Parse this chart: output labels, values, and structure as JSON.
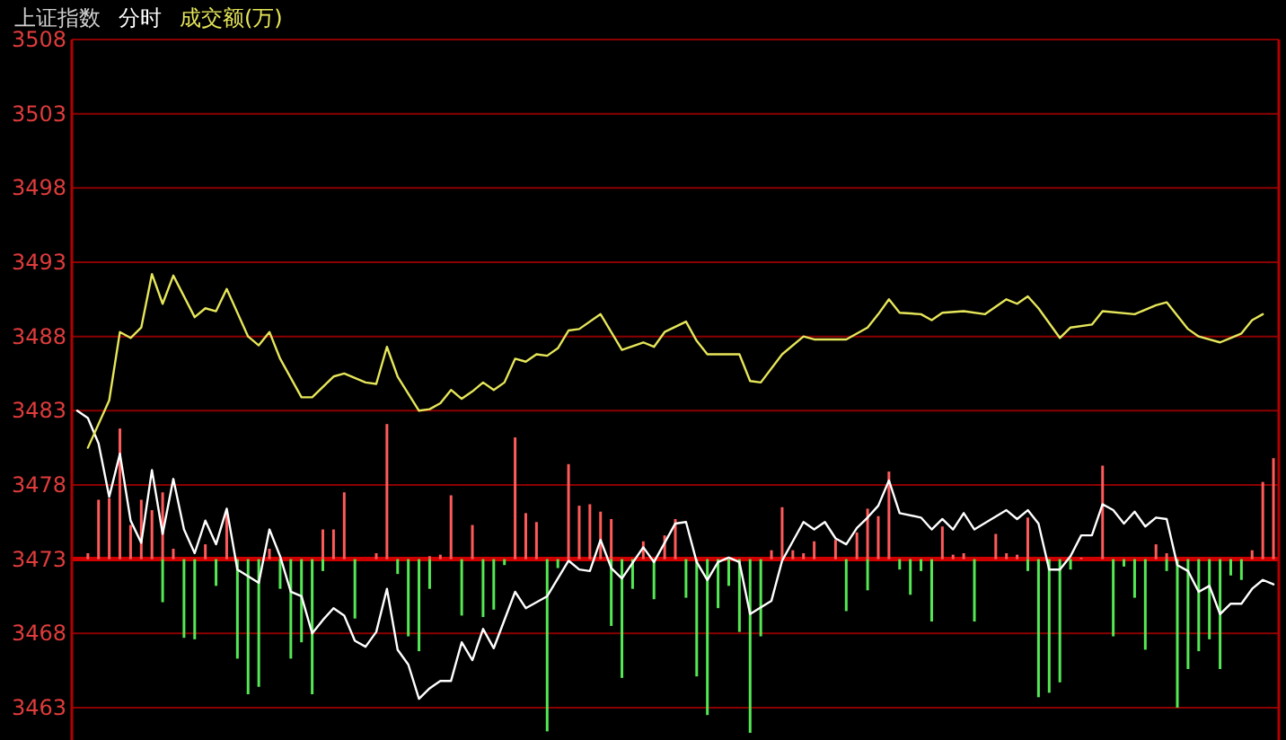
{
  "chart_data": {
    "type": "line",
    "title": "上证指数",
    "subtitle": "分时",
    "legend": "top left",
    "grid": "y",
    "ylim": [
      3461,
      3508
    ],
    "yticks": [
      3463,
      3468,
      3473,
      3478,
      3483,
      3488,
      3493,
      3498,
      3503,
      3508
    ],
    "ref_lines": [
      {
        "axis": "y",
        "value": 3473,
        "color": "#d00000"
      }
    ],
    "categories": [
      null,
      null,
      null,
      null,
      null,
      null,
      null,
      null,
      null,
      null,
      null,
      null,
      null,
      null,
      null,
      null,
      null,
      null,
      null,
      null,
      null,
      null,
      null,
      null,
      null,
      null,
      null,
      null,
      null,
      null,
      null,
      null,
      null,
      null,
      null,
      null,
      null,
      null,
      null,
      null,
      null,
      null,
      null,
      null,
      null,
      null,
      null,
      null,
      null,
      null,
      null,
      null,
      null,
      null,
      null,
      null,
      null,
      null,
      null,
      null,
      null,
      null,
      null,
      null,
      null,
      null,
      null,
      null,
      null,
      null,
      null,
      null,
      null,
      null,
      null,
      null,
      null,
      null,
      null,
      null,
      null,
      null,
      null,
      null,
      null,
      null,
      null,
      null,
      null,
      null,
      null,
      null,
      null,
      null,
      null,
      null,
      null,
      null,
      null,
      null,
      null,
      null,
      null,
      null,
      null,
      null,
      null,
      null,
      null,
      null,
      null,
      null,
      null
    ],
    "series": [
      {
        "type": "bar",
        "color": "#ff5a5a",
        "base": [
          null,
          3473,
          3473,
          3473,
          3473,
          3473,
          3473,
          3473,
          3473,
          3473,
          null,
          null,
          3473,
          null,
          3473,
          null,
          null,
          null,
          3473,
          null,
          null,
          null,
          null,
          3473,
          3473,
          3473,
          null,
          null,
          3473,
          3473,
          null,
          null,
          null,
          3473,
          3473,
          3473,
          null,
          3473,
          null,
          null,
          null,
          3473,
          3473,
          3473,
          null,
          null,
          3473,
          3473,
          3473,
          3473,
          3473,
          null,
          null,
          3473,
          null,
          3473,
          3473,
          null,
          null,
          null,
          null,
          null,
          null,
          null,
          null,
          3473,
          3473,
          3473,
          3473,
          3473,
          null,
          3473,
          null,
          3473,
          3473,
          3473,
          3473,
          null,
          null,
          null,
          null,
          3473,
          3473,
          3473,
          null,
          null,
          3473,
          3473,
          3473,
          3473,
          null,
          null,
          null,
          null,
          3473,
          null,
          3473,
          null,
          null,
          null,
          null,
          3473,
          3473,
          null,
          null,
          null,
          null,
          null,
          null,
          null,
          3473,
          3473,
          3473
        ],
        "values": [
          null,
          0.4,
          4.0,
          4.1,
          8.8,
          2.3,
          4.0,
          3.3,
          4.5,
          0.7,
          null,
          null,
          1.0,
          null,
          3.3,
          null,
          null,
          null,
          0.7,
          null,
          null,
          null,
          null,
          2.0,
          2.0,
          4.5,
          null,
          null,
          0.4,
          9.1,
          null,
          null,
          null,
          0.2,
          0.3,
          4.3,
          null,
          2.3,
          null,
          null,
          null,
          8.2,
          3.1,
          2.5,
          null,
          null,
          6.4,
          3.6,
          3.7,
          3.2,
          2.7,
          null,
          null,
          1.2,
          null,
          1.6,
          2.7,
          null,
          null,
          null,
          null,
          null,
          null,
          null,
          null,
          0.6,
          3.5,
          0.6,
          0.4,
          1.2,
          null,
          1.3,
          null,
          1.8,
          3.4,
          2.9,
          5.9,
          null,
          null,
          null,
          null,
          2.2,
          0.3,
          0.4,
          null,
          null,
          1.7,
          0.4,
          0.3,
          2.8,
          null,
          null,
          null,
          null,
          0.1,
          null,
          6.3,
          null,
          null,
          null,
          null,
          1.0,
          0.4,
          null,
          null,
          null,
          null,
          null,
          null,
          null,
          0.6,
          5.2,
          6.8
        ]
      },
      {
        "type": "bar",
        "color": "#54e854",
        "base": [
          null,
          null,
          null,
          null,
          null,
          null,
          null,
          null,
          3473,
          null,
          3473,
          3473,
          null,
          3473,
          null,
          3473,
          3473,
          3473,
          null,
          3473,
          3473,
          3473,
          3473,
          3473,
          null,
          null,
          3473,
          null,
          null,
          null,
          3473,
          3473,
          3473,
          3473,
          null,
          null,
          3473,
          null,
          3473,
          3473,
          3473,
          null,
          null,
          null,
          3473,
          3473,
          null,
          null,
          null,
          null,
          3473,
          3473,
          3473,
          null,
          3473,
          null,
          null,
          3473,
          3473,
          3473,
          3473,
          3473,
          3473,
          3473,
          3473,
          null,
          null,
          null,
          null,
          null,
          null,
          null,
          3473,
          null,
          3473,
          null,
          null,
          3473,
          3473,
          3473,
          3473,
          null,
          null,
          null,
          3473,
          null,
          null,
          null,
          null,
          3473,
          3473,
          3473,
          3473,
          3473,
          null,
          null,
          null,
          3473,
          3473,
          3473,
          3473,
          null,
          3473,
          3473,
          3473,
          3473,
          3473,
          3473,
          3473,
          3473,
          null,
          null,
          null
        ],
        "values": [
          null,
          null,
          null,
          null,
          null,
          null,
          null,
          null,
          -2.9,
          null,
          -5.3,
          -5.4,
          null,
          -1.8,
          null,
          -6.7,
          -9.1,
          -8.6,
          null,
          -2.0,
          -6.7,
          -5.6,
          -9.1,
          -0.8,
          null,
          null,
          -4.0,
          null,
          null,
          null,
          -1.0,
          -5.2,
          -6.2,
          -2.0,
          null,
          null,
          -3.8,
          null,
          -3.9,
          -3.4,
          -0.4,
          null,
          null,
          null,
          -11.6,
          -0.6,
          null,
          null,
          null,
          null,
          -4.5,
          -8.0,
          -2.0,
          null,
          -2.7,
          null,
          null,
          -2.6,
          -7.9,
          -10.5,
          -3.3,
          -1.8,
          -4.9,
          -11.7,
          -5.2,
          null,
          null,
          null,
          null,
          null,
          null,
          null,
          -3.5,
          null,
          -2.1,
          null,
          null,
          -0.7,
          -2.4,
          -0.8,
          -4.2,
          null,
          null,
          null,
          -4.2,
          null,
          null,
          null,
          null,
          -0.8,
          -9.3,
          -9.0,
          -8.3,
          -0.7,
          null,
          null,
          null,
          -5.2,
          -0.5,
          -2.6,
          -6.1,
          null,
          -0.8,
          -10.0,
          -7.4,
          -6.2,
          -5.4,
          -7.4,
          -1.1,
          -1.4,
          null,
          null,
          null
        ]
      },
      {
        "color": "#ffffff",
        "values": [
          3483.0,
          3482.5,
          3480.8,
          3477.2,
          3480.1,
          3475.6,
          3474.1,
          3479.0,
          3474.7,
          3478.4,
          3475.0,
          3473.4,
          3475.6,
          3474.0,
          3476.4,
          3472.3,
          null,
          3471.4,
          3475.0,
          3473.2,
          3470.8,
          3470.5,
          3468.0,
          3468.9,
          3469.7,
          3469.2,
          3467.5,
          3467.1,
          3468.1,
          3471.0,
          3466.9,
          3465.9,
          3463.6,
          3464.3,
          3464.8,
          3464.8,
          3467.4,
          3466.2,
          3468.3,
          3467.0,
          null,
          3470.8,
          3469.7,
          null,
          3470.5,
          null,
          3472.9,
          3472.3,
          3472.2,
          3474.3,
          3472.4,
          3471.7,
          null,
          3473.8,
          3472.8,
          null,
          3475.4,
          3475.5,
          3472.8,
          3471.6,
          3472.8,
          3473.1,
          3472.8,
          3469.3,
          null,
          3470.2,
          3472.9,
          null,
          3475.5,
          3475.0,
          3475.5,
          3474.4,
          3474.0,
          3475.1,
          3475.8,
          3476.6,
          3478.3,
          3476.1,
          null,
          3475.8,
          3475.0,
          3475.7,
          3475.0,
          3476.1,
          3475.0,
          null,
          null,
          3476.3,
          3475.7,
          3476.3,
          3475.4,
          3472.3,
          3472.3,
          3473.2,
          3474.6,
          3474.6,
          3476.7,
          3476.3,
          3475.4,
          3476.2,
          3475.2,
          3475.8,
          3475.7,
          3472.6,
          3472.2,
          3470.8,
          3471.2,
          3469.3,
          3470.0,
          3470.0,
          3471.0,
          3471.6,
          3471.3
        ]
      },
      {
        "name": "成交额(万)",
        "color": "#e6e65a",
        "values": [
          null,
          3480.5,
          null,
          3483.7,
          3488.3,
          3487.9,
          3488.6,
          3492.2,
          3490.2,
          3492.1,
          null,
          3489.3,
          3489.9,
          3489.7,
          3491.2,
          null,
          3488.0,
          3487.4,
          3488.3,
          3486.5,
          null,
          3483.9,
          3483.9,
          null,
          3485.3,
          3485.5,
          null,
          3484.9,
          3484.8,
          3487.3,
          3485.3,
          null,
          3483.0,
          3483.1,
          3483.5,
          3484.4,
          3483.8,
          3484.3,
          3484.9,
          3484.4,
          3484.9,
          3486.5,
          3486.3,
          3486.8,
          3486.7,
          3487.2,
          3488.4,
          3488.5,
          null,
          3489.5,
          null,
          3487.1,
          null,
          3487.6,
          3487.3,
          3488.3,
          null,
          3489.0,
          3487.7,
          3486.8,
          null,
          null,
          3486.8,
          3485.0,
          3484.9,
          null,
          3486.8,
          null,
          3488.0,
          3487.8,
          null,
          null,
          3487.8,
          null,
          3488.6,
          3489.5,
          3490.5,
          3489.6,
          null,
          3489.5,
          3489.1,
          3489.6,
          null,
          3489.7,
          null,
          3489.5,
          null,
          3490.5,
          3490.2,
          3490.7,
          3489.9,
          null,
          3487.9,
          3488.6,
          null,
          3488.8,
          3489.7,
          null,
          null,
          3489.5,
          null,
          3490.1,
          3490.3,
          null,
          3488.5,
          3488.0,
          null,
          3487.6,
          3487.9,
          3488.2,
          3489.1,
          3489.5,
          null
        ]
      }
    ]
  }
}
